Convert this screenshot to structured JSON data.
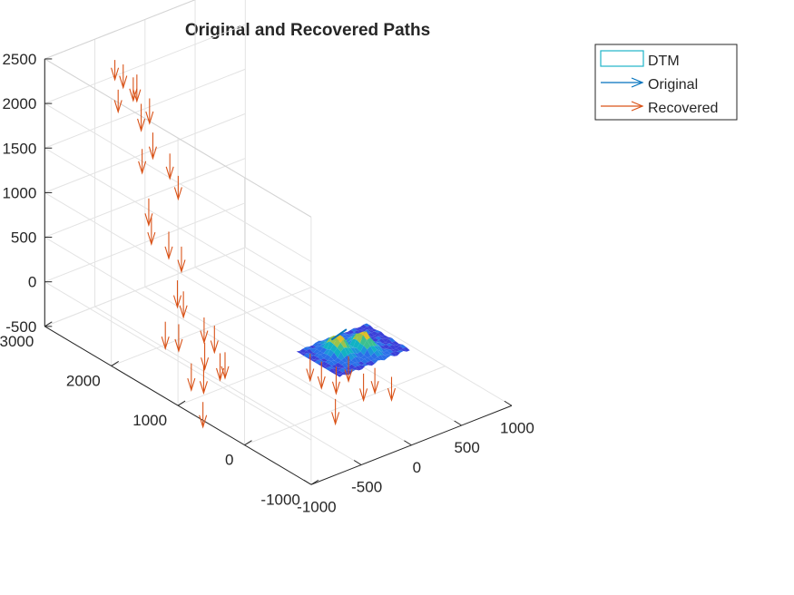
{
  "chart_data": {
    "type": "3d quiver + surface",
    "title": "Original and Recovered Paths",
    "grid": true,
    "legend_position": "top-right",
    "legend": [
      {
        "label": "DTM",
        "kind": "patch",
        "color": "#1FB5C9"
      },
      {
        "label": "Original",
        "kind": "arrow",
        "color": "#0072BD"
      },
      {
        "label": "Recovered",
        "kind": "arrow",
        "color": "#D95319"
      }
    ],
    "axes": {
      "x": {
        "ticks": [
          -1000,
          -500,
          0,
          500,
          1000
        ],
        "tick_labels": [
          "-1000",
          "-500",
          "0",
          "500",
          "1000"
        ],
        "lim": [
          -1000,
          1000
        ]
      },
      "y": {
        "ticks": [
          -1000,
          0,
          1000,
          2000,
          3000
        ],
        "tick_labels": [
          "-1000",
          "0",
          "1000",
          "2000",
          "3000"
        ],
        "lim": [
          -1000,
          3000
        ]
      },
      "z": {
        "ticks": [
          -500,
          0,
          500,
          1000,
          1500,
          2000,
          2500
        ],
        "tick_labels": [
          "-500",
          "0",
          "500",
          "1000",
          "1500",
          "2000",
          "2500"
        ],
        "lim": [
          -500,
          2500
        ]
      }
    },
    "series": [
      {
        "name": "Recovered",
        "color": "#D95319",
        "note": "approximate arrow tail points (x, y, z) and vectors (u, v, w)",
        "arrows": [
          [
            -500,
            2700,
            2400,
            0,
            0,
            -220
          ],
          [
            -450,
            2650,
            2350,
            0,
            0,
            -260
          ],
          [
            -600,
            2500,
            2200,
            0,
            0,
            -250
          ],
          [
            -380,
            2550,
            2250,
            0,
            0,
            -300
          ],
          [
            -250,
            2800,
            2050,
            0,
            0,
            -260
          ],
          [
            -320,
            2450,
            2000,
            0,
            0,
            -280
          ],
          [
            -470,
            2350,
            2050,
            0,
            0,
            -300
          ],
          [
            -420,
            2250,
            1750,
            0,
            0,
            -290
          ],
          [
            -560,
            2200,
            1650,
            0,
            0,
            -270
          ],
          [
            -350,
            2100,
            1550,
            0,
            0,
            -280
          ],
          [
            -300,
            2050,
            1300,
            0,
            0,
            -260
          ],
          [
            -660,
            1950,
            1250,
            0,
            0,
            -300
          ],
          [
            -700,
            1850,
            1100,
            0,
            0,
            -300
          ],
          [
            -560,
            1800,
            900,
            0,
            0,
            -300
          ],
          [
            -500,
            1700,
            750,
            0,
            0,
            -280
          ],
          [
            -640,
            1550,
            500,
            0,
            0,
            -300
          ],
          [
            -580,
            1550,
            350,
            0,
            0,
            -290
          ],
          [
            -860,
            1400,
            200,
            0,
            0,
            -300
          ],
          [
            -760,
            1350,
            150,
            0,
            0,
            -300
          ],
          [
            -540,
            1300,
            150,
            0,
            0,
            -280
          ],
          [
            -470,
            1250,
            50,
            0,
            0,
            -300
          ],
          [
            -700,
            1050,
            50,
            0,
            0,
            -300
          ],
          [
            -900,
            950,
            -50,
            0,
            0,
            -300
          ],
          [
            -810,
            900,
            -100,
            0,
            0,
            -300
          ],
          [
            -630,
            850,
            0,
            0,
            0,
            -290
          ],
          [
            -580,
            1000,
            -100,
            0,
            0,
            -300
          ],
          [
            -950,
            700,
            -350,
            0,
            0,
            -280
          ],
          [
            -180,
            250,
            50,
            0,
            0,
            -300
          ],
          [
            -100,
            200,
            -50,
            0,
            0,
            -300
          ],
          [
            -20,
            100,
            -100,
            0,
            0,
            -300
          ],
          [
            70,
            50,
            0,
            0,
            0,
            -280
          ],
          [
            120,
            -100,
            -150,
            0,
            0,
            -300
          ],
          [
            200,
            -150,
            -100,
            0,
            0,
            -280
          ],
          [
            300,
            -250,
            -200,
            0,
            0,
            -260
          ],
          [
            -260,
            -250,
            -200,
            0,
            0,
            -280
          ]
        ]
      },
      {
        "name": "Original",
        "color": "#0072BD",
        "note": "short path segment above the DTM",
        "arrows": [
          [
            0,
            200,
            150,
            150,
            0,
            50
          ]
        ]
      }
    ]
  }
}
